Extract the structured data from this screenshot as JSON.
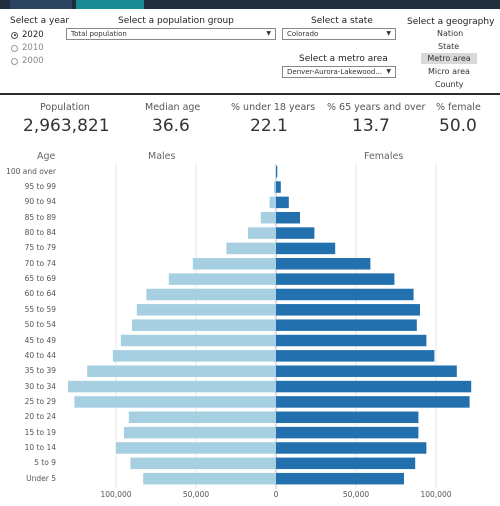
{
  "controls": {
    "year": {
      "label": "Select a year",
      "options": [
        {
          "label": "2020",
          "selected": true
        },
        {
          "label": "2010",
          "selected": false
        },
        {
          "label": "2000",
          "selected": false
        }
      ]
    },
    "population_group": {
      "label": "Select a population group",
      "value": "Total population"
    },
    "state": {
      "label": "Select a state",
      "value": "Colorado"
    },
    "metro": {
      "label": "Select a metro area",
      "value": "Denver-Aurora-Lakewood..."
    },
    "geography": {
      "label": "Select a geography",
      "options": [
        {
          "label": "Nation",
          "selected": false
        },
        {
          "label": "State",
          "selected": false
        },
        {
          "label": "Metro area",
          "selected": true
        },
        {
          "label": "Micro area",
          "selected": false
        },
        {
          "label": "County",
          "selected": false
        }
      ]
    }
  },
  "stats": [
    {
      "label": "Population",
      "value": "2,963,821"
    },
    {
      "label": "Median age",
      "value": "36.6"
    },
    {
      "label": "% under 18 years",
      "value": "22.1"
    },
    {
      "label": "% 65 years and over",
      "value": "13.7"
    },
    {
      "label": "% female",
      "value": "50.0"
    }
  ],
  "chart_data": {
    "type": "bar",
    "orientation": "horizontal-pyramid",
    "age_header": "Age",
    "males_label": "Males",
    "females_label": "Females",
    "categories": [
      "100 and over",
      "95 to 99",
      "90 to 94",
      "85 to 89",
      "80 to 84",
      "75 to 79",
      "70 to 74",
      "65 to 69",
      "60 to 64",
      "55 to 59",
      "50 to 54",
      "45 to 49",
      "40 to 44",
      "35 to 39",
      "30 to 34",
      "25 to 29",
      "20 to 24",
      "15 to 19",
      "10 to 14",
      "5 to 9",
      "Under 5"
    ],
    "series": [
      {
        "name": "Males",
        "color": "#a6cfe2",
        "values": [
          300,
          1200,
          4000,
          9500,
          17500,
          31000,
          52000,
          67000,
          81000,
          87000,
          90000,
          97000,
          102000,
          118000,
          130000,
          126000,
          92000,
          95000,
          100000,
          91000,
          83000
        ]
      },
      {
        "name": "Females",
        "color": "#2270ad",
        "values": [
          800,
          3000,
          8000,
          15000,
          24000,
          37000,
          59000,
          74000,
          86000,
          90000,
          88000,
          94000,
          99000,
          113000,
          122000,
          121000,
          89000,
          89000,
          94000,
          87000,
          80000
        ]
      }
    ],
    "x_ticks": [
      "100,000",
      "50,000",
      "0",
      "50,000",
      "100,000"
    ],
    "xlim": [
      -130000,
      130000
    ],
    "grid": true
  }
}
